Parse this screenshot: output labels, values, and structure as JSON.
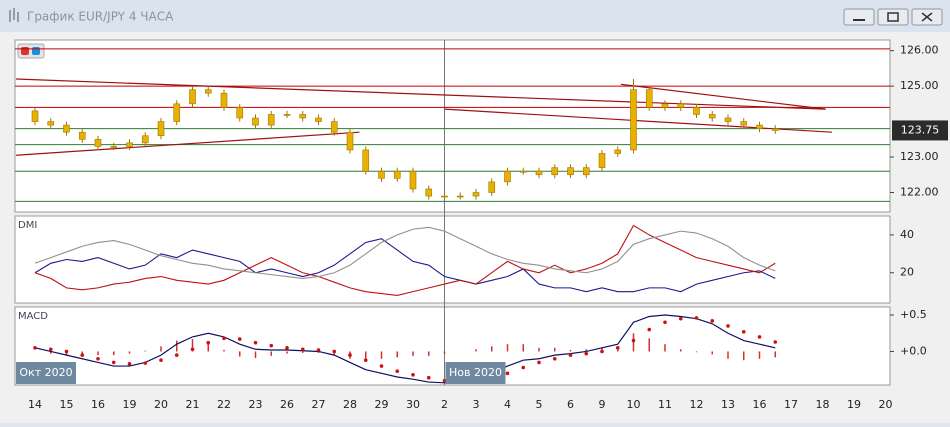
{
  "window": {
    "title": "График EUR/JPY  4 ЧАСА"
  },
  "x_axis": {
    "categories": [
      "14",
      "15",
      "16",
      "19",
      "20",
      "21",
      "22",
      "23",
      "26",
      "27",
      "28",
      "29",
      "30",
      "2",
      "3",
      "4",
      "5",
      "6",
      "9",
      "10",
      "11",
      "12",
      "13",
      "16",
      "17",
      "18",
      "19",
      "20"
    ],
    "markers": [
      "Окт 2020",
      "Нов 2020"
    ]
  },
  "chart_data": [
    {
      "type": "candlestick",
      "color": "#e8b000",
      "edge_color": "#a07800",
      "open": [
        124.3,
        124.0,
        123.9,
        123.7,
        123.5,
        123.3,
        123.3,
        123.4,
        123.6,
        124.0,
        124.5,
        124.9,
        124.8,
        124.4,
        124.1,
        123.9,
        124.2,
        124.2,
        124.1,
        124.0,
        123.7,
        123.2,
        122.6,
        122.4,
        122.6,
        122.1,
        121.9,
        121.9,
        121.9,
        122.0,
        122.3,
        122.6,
        122.6,
        122.5,
        122.7,
        122.5,
        122.7,
        123.1,
        123.2,
        124.9,
        124.4,
        124.5,
        124.4,
        124.2,
        124.1,
        124.0,
        123.9,
        123.8
      ],
      "high": [
        124.4,
        124.1,
        124.0,
        123.8,
        123.6,
        123.4,
        123.5,
        123.7,
        124.1,
        124.6,
        125.0,
        125.0,
        124.9,
        124.5,
        124.2,
        124.3,
        124.3,
        124.3,
        124.2,
        124.1,
        123.8,
        123.3,
        122.7,
        122.7,
        122.7,
        122.2,
        122.0,
        122.0,
        122.1,
        122.4,
        122.7,
        122.7,
        122.7,
        122.8,
        122.8,
        122.8,
        123.2,
        123.3,
        125.2,
        125.0,
        124.6,
        124.6,
        124.5,
        124.3,
        124.2,
        124.1,
        124.0,
        123.9
      ],
      "low": [
        123.9,
        123.8,
        123.6,
        123.4,
        123.2,
        123.2,
        123.2,
        123.3,
        123.5,
        123.9,
        124.4,
        124.7,
        124.3,
        124.0,
        123.8,
        123.8,
        124.1,
        124.0,
        123.9,
        123.6,
        123.1,
        122.5,
        122.3,
        122.3,
        122.0,
        121.8,
        121.8,
        121.8,
        121.8,
        121.9,
        122.2,
        122.5,
        122.4,
        122.4,
        122.4,
        122.4,
        122.6,
        123.0,
        123.1,
        124.3,
        124.3,
        124.3,
        124.1,
        124.0,
        123.9,
        123.8,
        123.7,
        123.65
      ],
      "close": [
        124.0,
        123.9,
        123.7,
        123.5,
        123.3,
        123.3,
        123.4,
        123.6,
        124.0,
        124.5,
        124.9,
        124.8,
        124.4,
        124.1,
        123.9,
        124.2,
        124.2,
        124.1,
        124.0,
        123.7,
        123.2,
        122.6,
        122.4,
        122.6,
        122.1,
        121.9,
        121.9,
        121.9,
        122.0,
        122.3,
        122.6,
        122.6,
        122.5,
        122.7,
        122.5,
        122.7,
        123.1,
        123.2,
        124.9,
        124.4,
        124.5,
        124.4,
        124.2,
        124.1,
        124.0,
        123.9,
        123.8,
        123.75
      ],
      "ylim": [
        121.45,
        126.3
      ],
      "yticks": [
        {
          "value": 126,
          "label": "126.00"
        },
        {
          "value": 125,
          "label": "125.00"
        },
        {
          "value": 123,
          "label": "123.00"
        },
        {
          "value": 122,
          "label": "122.00"
        }
      ],
      "levels": [
        {
          "value": 126.05,
          "color": "#c00000"
        },
        {
          "value": 125.0,
          "color": "#c00000"
        },
        {
          "value": 124.4,
          "color": "#c00000"
        },
        {
          "value": 123.8,
          "color": "#2e7d32"
        },
        {
          "value": 123.35,
          "color": "#2e7d32"
        },
        {
          "value": 122.6,
          "color": "#2e7d32"
        },
        {
          "value": 121.75,
          "color": "#2e7d32"
        }
      ],
      "trendline_color": "#a01010",
      "trendlines": [
        {
          "x": [
            -0.6,
            25.1
          ],
          "y": [
            125.2,
            124.35
          ]
        },
        {
          "x": [
            -0.6,
            10.3
          ],
          "y": [
            123.05,
            123.7
          ]
        },
        {
          "x": [
            18.6,
            25.1
          ],
          "y": [
            125.05,
            124.35
          ]
        },
        {
          "x": [
            13,
            25.3
          ],
          "y": [
            124.35,
            123.7
          ]
        }
      ],
      "last_price": 123.75
    },
    {
      "type": "line",
      "title": "DMI",
      "ylim": [
        4,
        50
      ],
      "yticks": [
        20,
        40
      ],
      "series": [
        {
          "color": "#1a1a90",
          "values": [
            20,
            25,
            27,
            26,
            28,
            25,
            22,
            24,
            30,
            28,
            32,
            30,
            28,
            26,
            20,
            22,
            20,
            18,
            20,
            24,
            30,
            36,
            38,
            32,
            26,
            24,
            18,
            16,
            14,
            16,
            18,
            22,
            14,
            12,
            12,
            10,
            12,
            10,
            10,
            12,
            12,
            10,
            14,
            16,
            18,
            20,
            21,
            17
          ]
        },
        {
          "color": "#c01010",
          "values": [
            20,
            17,
            12,
            11,
            12,
            14,
            15,
            17,
            18,
            16,
            15,
            14,
            16,
            20,
            24,
            28,
            24,
            20,
            18,
            15,
            12,
            10,
            9,
            8,
            10,
            12,
            14,
            16,
            14,
            20,
            26,
            22,
            20,
            24,
            20,
            22,
            25,
            30,
            45,
            40,
            36,
            32,
            28,
            26,
            24,
            22,
            20,
            25
          ]
        },
        {
          "color": "#909090",
          "values": [
            25,
            28,
            31,
            34,
            36,
            37,
            35,
            32,
            29,
            27,
            25,
            24,
            22,
            21,
            20,
            19,
            18,
            17,
            18,
            20,
            24,
            30,
            36,
            40,
            43,
            44,
            42,
            38,
            34,
            30,
            27,
            25,
            24,
            22,
            21,
            20,
            22,
            26,
            35,
            38,
            40,
            42,
            41,
            38,
            34,
            28,
            24,
            21
          ]
        }
      ]
    },
    {
      "type": "macd",
      "title": "MACD",
      "ylim": [
        -0.46,
        0.61
      ],
      "yticks": [
        {
          "value": 0.5,
          "label": "+0.5"
        },
        {
          "value": 0,
          "label": "+0.0"
        }
      ],
      "histogram": {
        "color": "#d03030",
        "values": [
          0,
          -0.03,
          -0.05,
          -0.05,
          -0.05,
          -0.05,
          -0.03,
          0.01,
          0.07,
          0.15,
          0.17,
          0.13,
          0.02,
          -0.07,
          -0.09,
          -0.06,
          -0.03,
          -0.02,
          -0.02,
          -0.05,
          -0.1,
          -0.13,
          -0.1,
          -0.08,
          -0.06,
          -0.06,
          -0.03,
          0,
          0.03,
          0.07,
          0.1,
          0.1,
          0.05,
          0.05,
          0.02,
          0.03,
          0.05,
          0.05,
          0.25,
          0.18,
          0.1,
          0.03,
          -0.01,
          -0.04,
          -0.1,
          -0.12,
          -0.1,
          -0.08
        ]
      },
      "series": [
        {
          "color": "#101060",
          "style": "line",
          "values": [
            0.05,
            0,
            -0.05,
            -0.1,
            -0.15,
            -0.2,
            -0.2,
            -0.15,
            -0.05,
            0.1,
            0.2,
            0.25,
            0.2,
            0.1,
            0.03,
            0.02,
            0.02,
            0.01,
            0,
            -0.05,
            -0.15,
            -0.25,
            -0.3,
            -0.35,
            -0.38,
            -0.42,
            -0.43,
            -0.42,
            -0.38,
            -0.3,
            -0.2,
            -0.12,
            -0.1,
            -0.05,
            -0.03,
            0,
            0.05,
            0.1,
            0.4,
            0.48,
            0.5,
            0.48,
            0.45,
            0.38,
            0.25,
            0.15,
            0.1,
            0.05
          ]
        },
        {
          "color": "#d01010",
          "style": "dots",
          "values": [
            0.05,
            0.03,
            0,
            -0.05,
            -0.1,
            -0.15,
            -0.17,
            -0.16,
            -0.12,
            -0.05,
            0.03,
            0.12,
            0.18,
            0.17,
            0.12,
            0.08,
            0.05,
            0.03,
            0.02,
            0,
            -0.05,
            -0.12,
            -0.2,
            -0.27,
            -0.32,
            -0.36,
            -0.4,
            -0.42,
            -0.41,
            -0.37,
            -0.3,
            -0.22,
            -0.15,
            -0.1,
            -0.05,
            -0.03,
            0,
            0.05,
            0.15,
            0.3,
            0.4,
            0.45,
            0.46,
            0.42,
            0.35,
            0.27,
            0.2,
            0.13
          ]
        }
      ]
    }
  ]
}
